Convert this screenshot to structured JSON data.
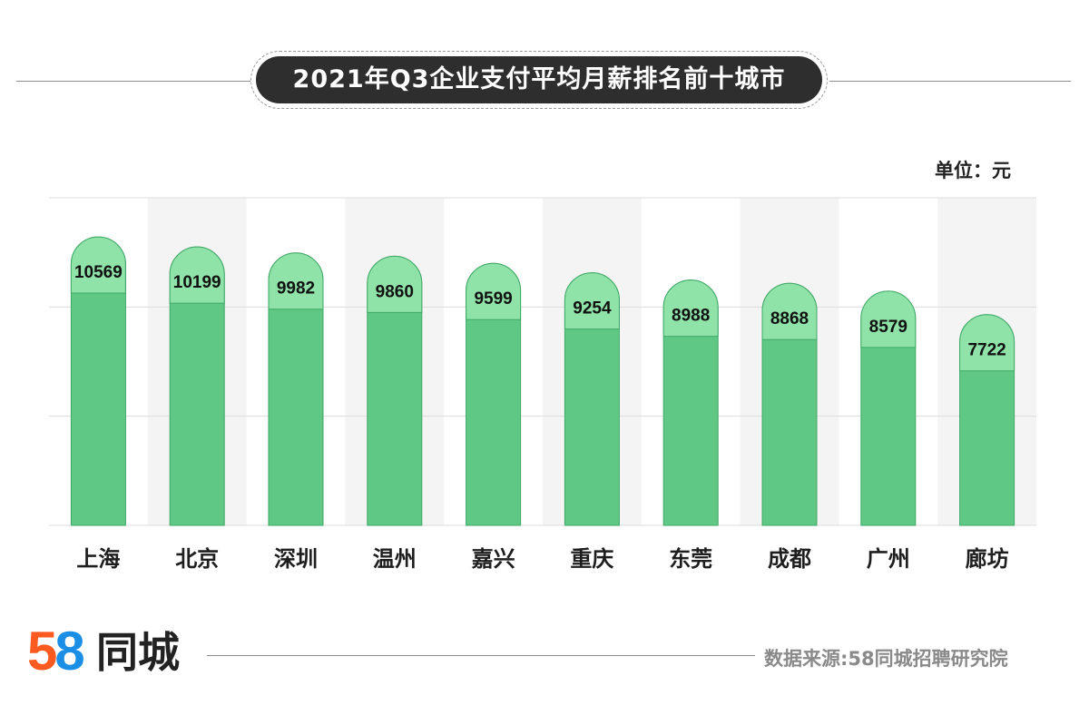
{
  "title": "2021年Q3企业支付平均月薪排名前十城市",
  "unit_label": "单位：元",
  "source": "数据来源:58同城招聘研究院",
  "logo": {
    "number": "58",
    "number_first": "5",
    "number_second": "8",
    "text": "同城"
  },
  "colors": {
    "bar_fill": "#5fc884",
    "bar_cap": "#8fe3a8",
    "bar_border": "#3fa866",
    "title_bg": "#2e2e2e",
    "stripe": "#f4f4f4",
    "grid": "#dcdcdc",
    "logo_5": "#ff5a1f",
    "logo_8": "#1b8fe6"
  },
  "chart_data": {
    "type": "bar",
    "categories": [
      "上海",
      "北京",
      "深圳",
      "温州",
      "嘉兴",
      "重庆",
      "东莞",
      "成都",
      "广州",
      "廊坊"
    ],
    "values": [
      10569,
      10199,
      9982,
      9860,
      9599,
      9254,
      8988,
      8868,
      8579,
      7722
    ],
    "title": "2021年Q3企业支付平均月薪排名前十城市",
    "ylabel": "单位：元",
    "ylim": [
      0,
      12000
    ],
    "grid": true,
    "data_labels": true
  }
}
